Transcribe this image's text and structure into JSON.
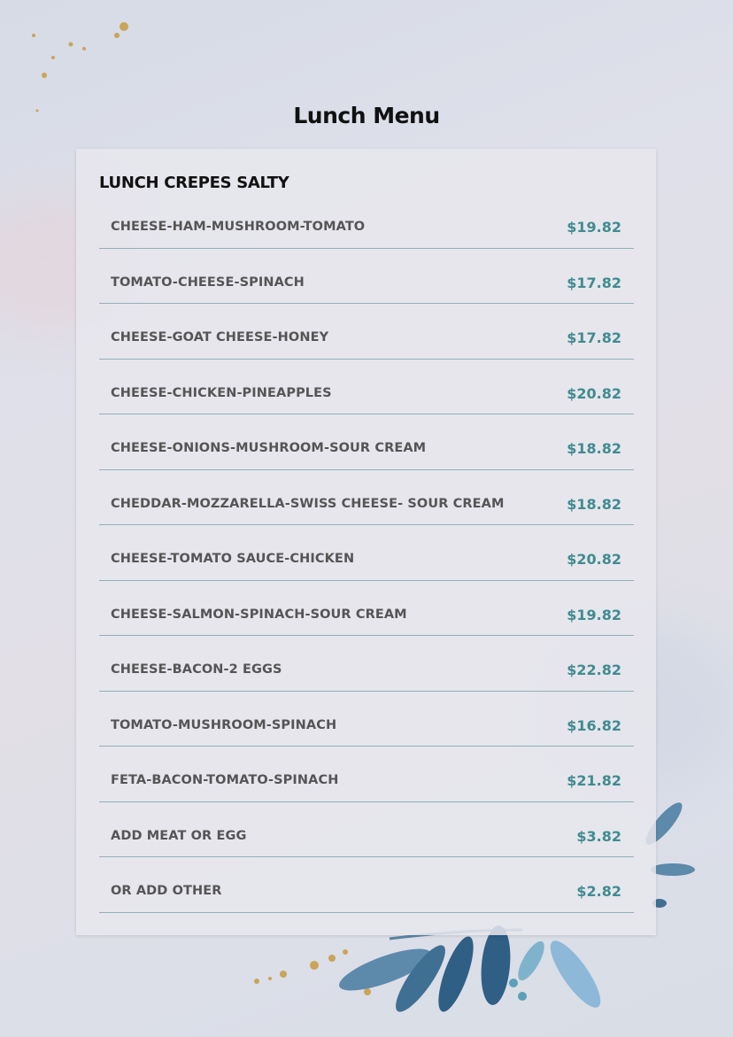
{
  "title": "Lunch Menu",
  "section": {
    "heading": "LUNCH CREPES SALTY",
    "items": [
      {
        "name": "CHEESE-HAM-MUSHROOM-TOMATO",
        "price": "$19.82"
      },
      {
        "name": "TOMATO-CHEESE-SPINACH",
        "price": "$17.82"
      },
      {
        "name": "CHEESE-GOAT CHEESE-HONEY",
        "price": "$17.82"
      },
      {
        "name": "CHEESE-CHICKEN-PINEAPPLES",
        "price": "$20.82"
      },
      {
        "name": "CHEESE-ONIONS-MUSHROOM-SOUR CREAM",
        "price": "$18.82"
      },
      {
        "name": "CHEDDAR-MOZZARELLA-SWISS CHEESE- SOUR CREAM",
        "price": "$18.82"
      },
      {
        "name": "CHEESE-TOMATO SAUCE-CHICKEN",
        "price": "$20.82"
      },
      {
        "name": "CHEESE-SALMON-SPINACH-SOUR CREAM",
        "price": "$19.82"
      },
      {
        "name": "CHEESE-BACON-2 EGGS",
        "price": "$22.82"
      },
      {
        "name": "TOMATO-MUSHROOM-SPINACH",
        "price": "$16.82"
      },
      {
        "name": "FETA-BACON-TOMATO-SPINACH",
        "price": "$21.82"
      },
      {
        "name": "ADD MEAT OR EGG",
        "price": "$3.82"
      },
      {
        "name": "OR ADD OTHER",
        "price": "$2.82"
      }
    ]
  },
  "colors": {
    "price": "#3f8c8f",
    "divider": "#8fb0b5",
    "leaf": "#3f6f92",
    "gold": "#c9a45a"
  }
}
